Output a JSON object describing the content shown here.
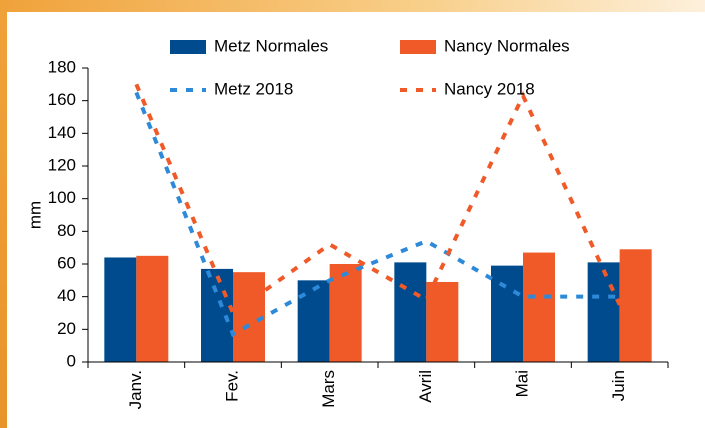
{
  "chart_data": {
    "type": "bar",
    "y_label": "mm",
    "categories": [
      "Janv.",
      "Fev.",
      "Mars",
      "Avril",
      "Mai",
      "Juin"
    ],
    "series": [
      {
        "name": "Metz Normales",
        "color": "#004b8d",
        "type": "bar",
        "values": [
          64,
          57,
          50,
          61,
          59,
          61
        ]
      },
      {
        "name": "Nancy Normales",
        "color": "#f05a28",
        "type": "bar",
        "values": [
          65,
          55,
          60,
          49,
          67,
          69
        ]
      },
      {
        "name": "Metz 2018",
        "color": "#2e8ad8",
        "type": "line",
        "dashed": true,
        "values": [
          165,
          17,
          50,
          74,
          40,
          40
        ]
      },
      {
        "name": "Nancy 2018",
        "color": "#f05a28",
        "type": "line",
        "dashed": true,
        "values": [
          170,
          30,
          72,
          38,
          163,
          35
        ]
      }
    ],
    "ylim": [
      0,
      180
    ],
    "yticks": [
      0,
      20,
      40,
      60,
      80,
      100,
      120,
      140,
      160,
      180
    ],
    "grid": false
  }
}
